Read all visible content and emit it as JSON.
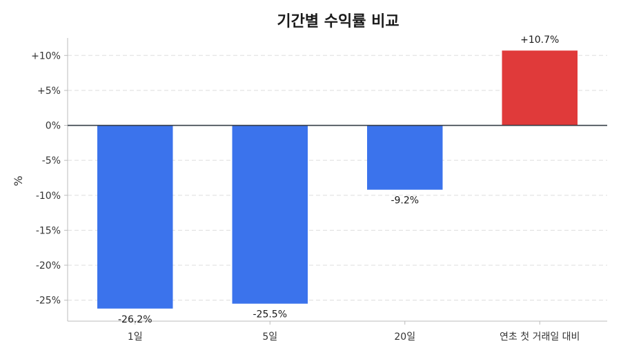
{
  "chart_data": {
    "type": "bar",
    "title": "기간별 수익률 비교",
    "ylabel": "%",
    "xlabel": "",
    "categories": [
      "1일",
      "5일",
      "20일",
      "연초 첫 거래일 대비"
    ],
    "values": [
      -26.2,
      -25.5,
      -9.2,
      10.7
    ],
    "data_labels": [
      "-26.2%",
      "-25.5%",
      "-9.2%",
      "+10.7%"
    ],
    "yticks": [
      10,
      5,
      0,
      -5,
      -10,
      -15,
      -20,
      -25
    ],
    "ytick_labels": [
      "+10%",
      "+5%",
      "0%",
      "-5%",
      "-10%",
      "-15%",
      "-20%",
      "-25%"
    ],
    "ylim": [
      -28,
      12.5
    ],
    "grid": true,
    "colors": {
      "negative": "#3b73ec",
      "positive": "#e03a3a",
      "zero_line": "#333b44",
      "grid": "#dddddd",
      "axis": "#bbbbbb"
    }
  }
}
